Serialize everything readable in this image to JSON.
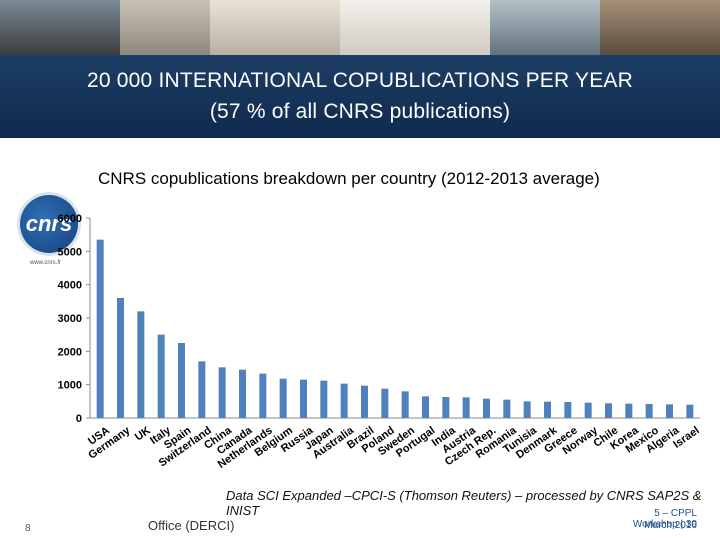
{
  "header": {
    "title_line1": "20 000  INTERNATIONAL COPUBLICATIONS PER YEAR",
    "title_line2": "(57 % of all CNRS publications)"
  },
  "logo": {
    "text": "cnrs",
    "url": "www.cnrs.fr"
  },
  "chart_data": {
    "type": "bar",
    "title": "CNRS copublications breakdown per country (2012-2013 average)",
    "xlabel": "",
    "ylabel": "",
    "ylim": [
      0,
      6000
    ],
    "yticks": [
      0,
      1000,
      2000,
      3000,
      4000,
      5000,
      6000
    ],
    "grid": false,
    "bar_color": "#4f81bd",
    "categories": [
      "USA",
      "Germany",
      "UK",
      "Italy",
      "Spain",
      "Switzerland",
      "China",
      "Canada",
      "Netherlands",
      "Belgium",
      "Russia",
      "Japan",
      "Australia",
      "Brazil",
      "Poland",
      "Sweden",
      "Portugal",
      "India",
      "Austria",
      "Czech Rep.",
      "Romania",
      "Tunisia",
      "Denmark",
      "Greece",
      "Norway",
      "Chile",
      "Korea",
      "Mexico",
      "Algeria",
      "Israel"
    ],
    "values": [
      5350,
      3600,
      3200,
      2500,
      2250,
      1700,
      1520,
      1450,
      1330,
      1180,
      1150,
      1120,
      1030,
      970,
      880,
      800,
      650,
      630,
      620,
      580,
      550,
      500,
      490,
      480,
      460,
      440,
      430,
      420,
      410,
      400
    ]
  },
  "footer": {
    "source": "Data SCI Expanded –CPCI-S (Thomson Reuters) – processed by CNRS SAP2S & INIST",
    "page_number": "8",
    "office": "Office (DERCI)",
    "right_line1": "5 – CPPL Workshop | 30",
    "right_line2": "March 2016"
  }
}
